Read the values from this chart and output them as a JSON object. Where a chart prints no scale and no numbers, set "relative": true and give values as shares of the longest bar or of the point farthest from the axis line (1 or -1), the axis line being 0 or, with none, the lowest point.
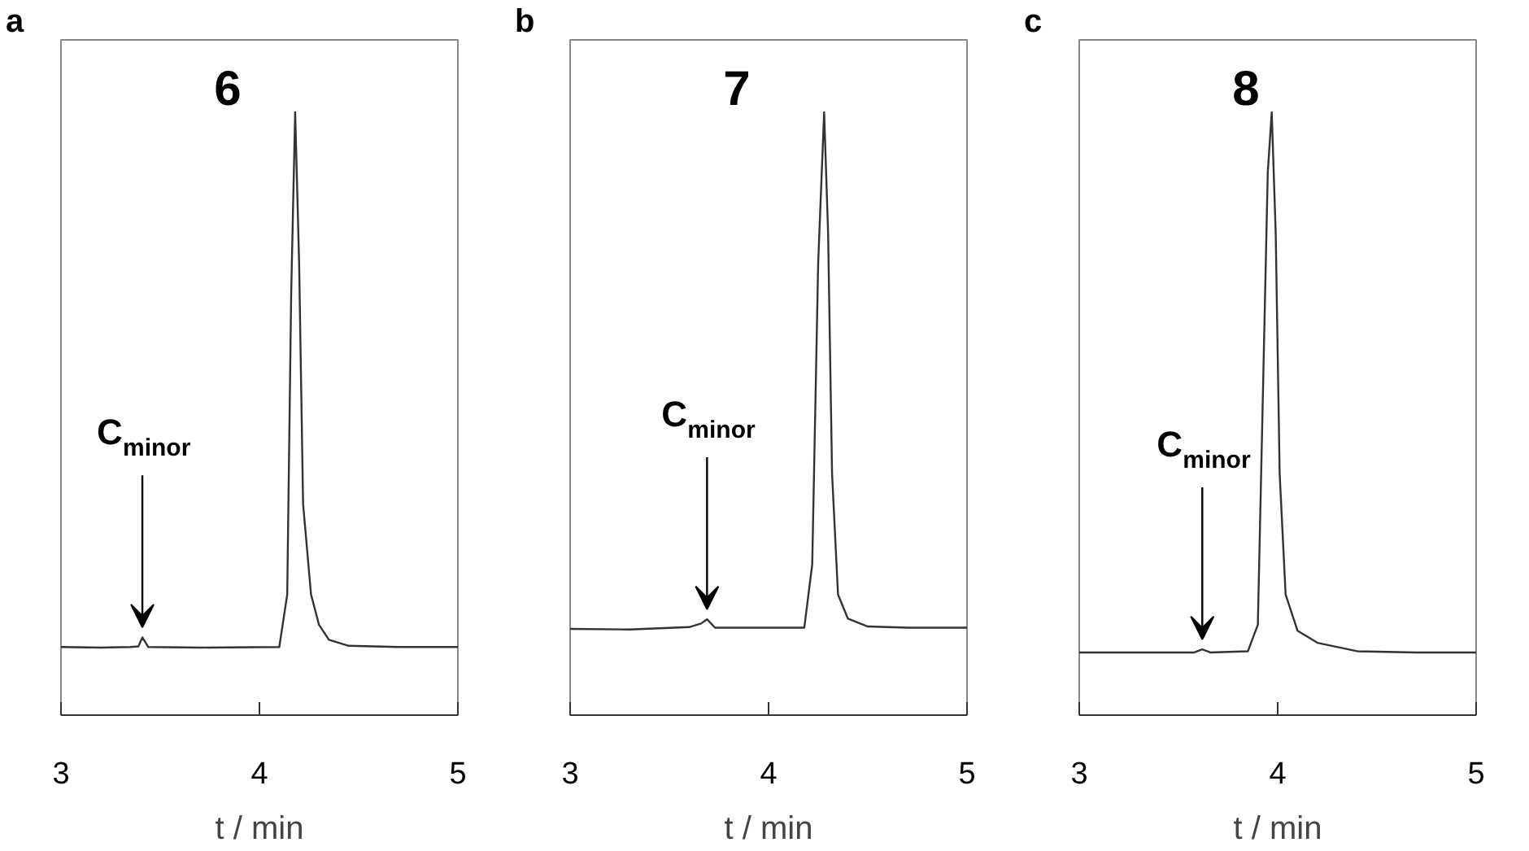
{
  "chart_data": [
    {
      "type": "line",
      "title": "6",
      "annotations": [
        "a",
        {
          "text": "C$_{minor}$",
          "x": 3.41,
          "y": 0.129
        }
      ],
      "xlabel": "t / min",
      "relative": true,
      "xlim": [
        3,
        5
      ],
      "xticks": [
        3,
        4,
        5
      ],
      "grid": false,
      "marker": "none",
      "line_style": "solid",
      "series": [
        {
          "color": "#333333",
          "x": [
            3.0,
            3.2,
            3.35,
            3.39,
            3.41,
            3.44,
            3.7,
            4.1,
            4.14,
            4.16,
            4.18,
            4.2,
            4.22,
            4.26,
            4.3,
            4.35,
            4.45,
            4.7,
            5.0
          ],
          "values": [
            0.113,
            0.112,
            0.113,
            0.114,
            0.129,
            0.113,
            0.112,
            0.113,
            0.2,
            0.7,
            1.0,
            0.75,
            0.35,
            0.2,
            0.15,
            0.125,
            0.115,
            0.113,
            0.113
          ]
        }
      ]
    },
    {
      "type": "line",
      "title": "7",
      "annotations": [
        "b",
        {
          "text": "C$_{minor}$",
          "x": 3.69,
          "y": 0.159
        }
      ],
      "xlabel": "t / min",
      "relative": true,
      "xlim": [
        3,
        5
      ],
      "xticks": [
        3,
        4,
        5
      ],
      "grid": false,
      "marker": "none",
      "line_style": "solid",
      "series": [
        {
          "color": "#333333",
          "x": [
            3.0,
            3.3,
            3.6,
            3.66,
            3.69,
            3.73,
            4.0,
            4.18,
            4.22,
            4.25,
            4.28,
            4.3,
            4.32,
            4.35,
            4.4,
            4.5,
            4.7,
            5.0
          ],
          "values": [
            0.143,
            0.142,
            0.146,
            0.152,
            0.159,
            0.145,
            0.145,
            0.145,
            0.25,
            0.75,
            1.0,
            0.8,
            0.4,
            0.2,
            0.16,
            0.147,
            0.145,
            0.145
          ]
        }
      ]
    },
    {
      "type": "line",
      "title": "8",
      "annotations": [
        "c",
        {
          "text": "C$_{minor}$",
          "x": 3.62,
          "y": 0.109
        }
      ],
      "xlabel": "t / min",
      "relative": true,
      "xlim": [
        3,
        5
      ],
      "xticks": [
        3,
        4,
        5
      ],
      "grid": false,
      "marker": "none",
      "line_style": "solid",
      "series": [
        {
          "color": "#333333",
          "x": [
            3.0,
            3.3,
            3.58,
            3.62,
            3.66,
            3.85,
            3.9,
            3.93,
            3.95,
            3.97,
            3.99,
            4.01,
            4.04,
            4.1,
            4.2,
            4.4,
            4.7,
            5.0
          ],
          "values": [
            0.104,
            0.104,
            0.104,
            0.109,
            0.104,
            0.106,
            0.15,
            0.6,
            0.9,
            1.0,
            0.8,
            0.4,
            0.2,
            0.14,
            0.12,
            0.106,
            0.104,
            0.104
          ]
        }
      ]
    }
  ]
}
